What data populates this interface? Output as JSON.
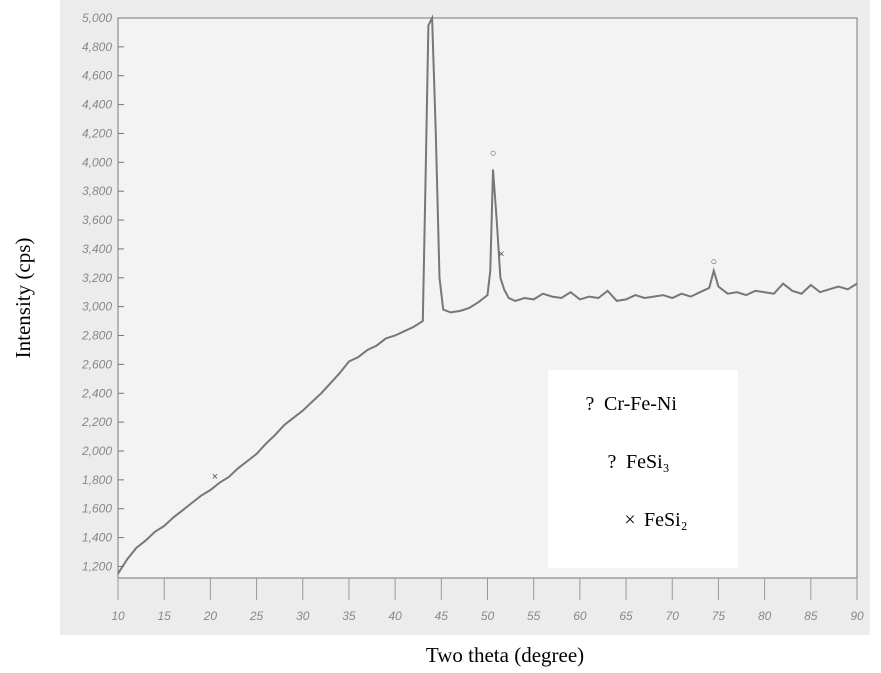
{
  "chart_data": {
    "type": "line",
    "xlabel": "Two theta (degree)",
    "ylabel": "Intensity (cps)",
    "series": [
      {
        "name": null,
        "color": "#777777",
        "x": [
          10,
          11,
          12,
          13,
          14,
          15,
          16,
          17,
          18,
          19,
          20,
          21,
          22,
          23,
          24,
          25,
          26,
          27,
          28,
          29,
          30,
          31,
          32,
          33,
          34,
          35,
          36,
          37,
          38,
          39,
          40,
          41,
          42,
          43,
          43.3,
          43.6,
          44,
          44.4,
          44.8,
          45.2,
          46,
          47,
          48,
          49,
          50,
          50.3,
          50.6,
          51,
          51.4,
          51.8,
          52.3,
          53,
          54,
          55,
          56,
          57,
          58,
          59,
          60,
          61,
          62,
          63,
          64,
          65,
          66,
          67,
          68,
          69,
          70,
          71,
          72,
          73,
          74,
          74.5,
          75,
          76,
          77,
          78,
          79,
          80,
          81,
          82,
          83,
          84,
          85,
          86,
          87,
          88,
          89,
          90
        ],
        "values": [
          1150,
          1250,
          1330,
          1380,
          1440,
          1480,
          1540,
          1590,
          1640,
          1690,
          1730,
          1780,
          1820,
          1880,
          1930,
          1980,
          2050,
          2110,
          2180,
          2230,
          2280,
          2340,
          2400,
          2470,
          2540,
          2620,
          2650,
          2700,
          2730,
          2780,
          2800,
          2830,
          2860,
          2900,
          3900,
          4950,
          5000,
          4200,
          3200,
          2980,
          2960,
          2970,
          2990,
          3030,
          3080,
          3250,
          3950,
          3600,
          3200,
          3120,
          3060,
          3040,
          3060,
          3050,
          3090,
          3070,
          3060,
          3100,
          3050,
          3070,
          3060,
          3110,
          3040,
          3050,
          3080,
          3060,
          3070,
          3080,
          3060,
          3090,
          3070,
          3100,
          3130,
          3250,
          3140,
          3090,
          3100,
          3080,
          3110,
          3100,
          3090,
          3160,
          3110,
          3090,
          3150,
          3100,
          3120,
          3140,
          3120,
          3160
        ]
      }
    ],
    "annotations": [
      {
        "x": 20.5,
        "y": 1800,
        "text": "×"
      },
      {
        "x": 50.6,
        "y": 4040,
        "text": "○"
      },
      {
        "x": 51.5,
        "y": 3340,
        "text": "×"
      },
      {
        "x": 74.5,
        "y": 3290,
        "text": "○"
      }
    ],
    "legend": [
      {
        "symbol": "?",
        "label": "Cr-Fe-Ni"
      },
      {
        "symbol": "?",
        "label": "FeSi₃"
      },
      {
        "symbol": "×",
        "label": "FeSi₂"
      }
    ],
    "xlim": [
      10,
      90
    ],
    "ylim": [
      1120,
      5000
    ],
    "xticks": [
      10,
      15,
      20,
      25,
      30,
      35,
      40,
      45,
      50,
      55,
      60,
      65,
      70,
      75,
      80,
      85,
      90
    ],
    "yticks": [
      {
        "value": 1200,
        "label": "1,200"
      },
      {
        "value": 1400,
        "label": "1,400"
      },
      {
        "value": 1600,
        "label": "1,600"
      },
      {
        "value": 1800,
        "label": "1,800"
      },
      {
        "value": 2000,
        "label": "2,000"
      },
      {
        "value": 2200,
        "label": "2,200"
      },
      {
        "value": 2400,
        "label": "2,400"
      },
      {
        "value": 2600,
        "label": "2,600"
      },
      {
        "value": 2800,
        "label": "2,800"
      },
      {
        "value": 3000,
        "label": "3,000"
      },
      {
        "value": 3200,
        "label": "3,200"
      },
      {
        "value": 3400,
        "label": "3,400"
      },
      {
        "value": 3600,
        "label": "3,600"
      },
      {
        "value": 3800,
        "label": "3,800"
      },
      {
        "value": 4000,
        "label": "4,000"
      },
      {
        "value": 4200,
        "label": "4,200"
      },
      {
        "value": 4400,
        "label": "4,400"
      },
      {
        "value": 4600,
        "label": "4,600"
      },
      {
        "value": 4800,
        "label": "4,800"
      },
      {
        "value": 5000,
        "label": "5,000"
      }
    ]
  }
}
